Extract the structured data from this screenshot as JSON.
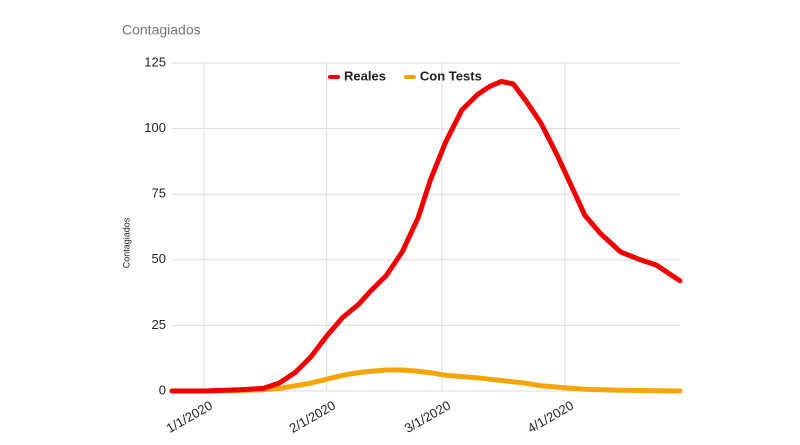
{
  "chart_data": {
    "type": "line",
    "title": "Contagiados",
    "y_label": "Contagiados",
    "x": [
      "12/24/2019",
      "1/1/2020",
      "1/10/2020",
      "1/16/2020",
      "1/20/2020",
      "1/24/2020",
      "1/28/2020",
      "2/1/2020",
      "2/5/2020",
      "2/9/2020",
      "2/12/2020",
      "2/16/2020",
      "2/20/2020",
      "2/24/2020",
      "2/27/2020",
      "3/2/2020",
      "3/6/2020",
      "3/10/2020",
      "3/13/2020",
      "3/16/2020",
      "3/19/2020",
      "3/22/2020",
      "3/26/2020",
      "3/30/2020",
      "4/3/2020",
      "4/6/2020",
      "4/10/2020",
      "4/15/2020",
      "4/20/2020",
      "4/24/2020",
      "4/30/2020"
    ],
    "series": [
      {
        "name": "Reales",
        "color": "#ee0000",
        "values": [
          0,
          0,
          0.5,
          1,
          3,
          7,
          13,
          21,
          28,
          33,
          38,
          44,
          53,
          66,
          80,
          95,
          107,
          113,
          116,
          118,
          117,
          111,
          102,
          90,
          77,
          67,
          60,
          53,
          50,
          48,
          42
        ]
      },
      {
        "name": "Con Tests",
        "color": "#f5a50a",
        "values": [
          0,
          0,
          0.2,
          0.5,
          1,
          2,
          3,
          4.5,
          6,
          7,
          7.5,
          8,
          8,
          7.5,
          7,
          6,
          5.5,
          5,
          4.5,
          4,
          3.5,
          3,
          2,
          1.5,
          1,
          0.7,
          0.5,
          0.3,
          0.2,
          0.1,
          0
        ]
      }
    ],
    "xlim": [
      "12/24/2019",
      "4/30/2020"
    ],
    "xticks": [
      "1/1/2020",
      "2/1/2020",
      "3/1/2020",
      "4/1/2020"
    ],
    "ylim": [
      0,
      125
    ],
    "yticks": [
      0,
      25,
      50,
      75,
      100,
      125
    ],
    "grid": true,
    "legend": "top"
  }
}
